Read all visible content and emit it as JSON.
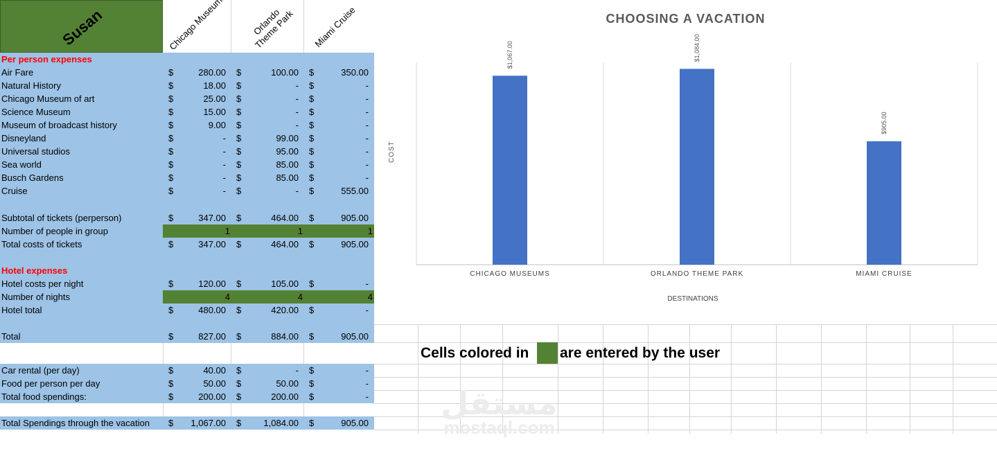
{
  "owner": "Susan",
  "columns": [
    "Chicago Museums",
    "Orlando\nTheme Park",
    "Miami Cruise"
  ],
  "currency": "$",
  "sections": {
    "per_person": "Per person expenses",
    "hotel": "Hotel expenses"
  },
  "rows": {
    "air_fare": {
      "label": "Air Fare",
      "v": [
        "280.00",
        "100.00",
        "350.00"
      ]
    },
    "natural_history": {
      "label": "Natural History",
      "v": [
        "18.00",
        "-",
        "-"
      ]
    },
    "chicago_art": {
      "label": "Chicago Museum of art",
      "v": [
        "25.00",
        "-",
        "-"
      ]
    },
    "science_museum": {
      "label": "Science Museum",
      "v": [
        "15.00",
        "-",
        "-"
      ]
    },
    "broadcast": {
      "label": "Museum of broadcast history",
      "v": [
        "9.00",
        "-",
        "-"
      ]
    },
    "disneyland": {
      "label": "Disneyland",
      "v": [
        "-",
        "99.00",
        "-"
      ]
    },
    "universal": {
      "label": "Universal studios",
      "v": [
        "-",
        "95.00",
        "-"
      ]
    },
    "sea_world": {
      "label": "Sea world",
      "v": [
        "-",
        "85.00",
        "-"
      ]
    },
    "busch": {
      "label": "Busch Gardens",
      "v": [
        "-",
        "85.00",
        "-"
      ]
    },
    "cruise": {
      "label": "Cruise",
      "v": [
        "-",
        "-",
        "555.00"
      ]
    },
    "subtotal": {
      "label": "Subtotal of tickets (perperson)",
      "v": [
        "347.00",
        "464.00",
        "905.00"
      ]
    },
    "people": {
      "label": "Number of people in group",
      "v": [
        "1",
        "1",
        "1"
      ]
    },
    "total_tickets": {
      "label": "Total costs of tickets",
      "v": [
        "347.00",
        "464.00",
        "905.00"
      ]
    },
    "hotel_night": {
      "label": "Hotel costs per night",
      "v": [
        "120.00",
        "105.00",
        "-"
      ]
    },
    "nights": {
      "label": "Number of nights",
      "v": [
        "4",
        "4",
        "4"
      ]
    },
    "hotel_total": {
      "label": "Hotel total",
      "v": [
        "480.00",
        "420.00",
        "-"
      ]
    },
    "total": {
      "label": "Total",
      "v": [
        "827.00",
        "884.00",
        "905.00"
      ]
    },
    "car_rental": {
      "label": "Car rental (per day)",
      "v": [
        "40.00",
        "-",
        "-"
      ]
    },
    "food_pp": {
      "label": "Food per person per day",
      "v": [
        "50.00",
        "50.00",
        "-"
      ]
    },
    "food_total": {
      "label": "Total food spendings:",
      "v": [
        "200.00",
        "200.00",
        "-"
      ]
    },
    "grand_total": {
      "label": "Total Spendings through the vacation",
      "v": [
        "1,067.00",
        "1,084.00",
        "905.00"
      ]
    }
  },
  "note": {
    "before": "Cells colored in",
    "after": "are entered by the user"
  },
  "watermark": {
    "arabic": "مستقل",
    "latin": "mostaql.com"
  },
  "colors": {
    "user_input": "#548235",
    "table_fill": "#9dc3e6",
    "bar": "#4472c4",
    "section_text": "#ff0000"
  },
  "chart_data": {
    "type": "bar",
    "title": "CHOOSING A VACATION",
    "xlabel": "DESTINATIONS",
    "ylabel": "COST",
    "categories": [
      "CHICAGO MUSEUMS",
      "ORLANDO THEME PARK",
      "MIAMI CRUISE"
    ],
    "values": [
      1067,
      1084,
      905
    ],
    "data_labels": [
      "$1,067.00",
      "$1,084.00",
      "$905.00"
    ],
    "ylim": [
      600,
      1100
    ],
    "grid": "vertical"
  }
}
